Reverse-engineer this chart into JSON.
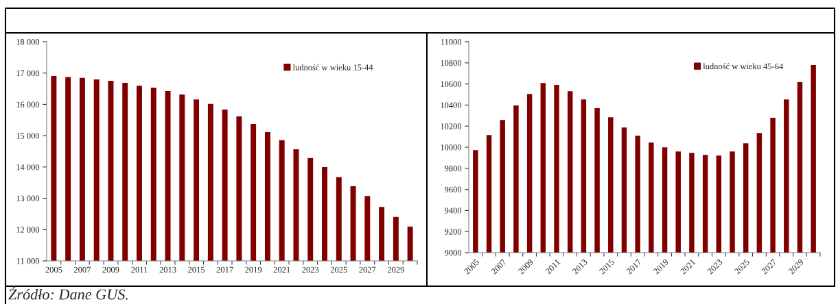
{
  "chart_data": [
    {
      "type": "bar",
      "categories": [
        "2005",
        null,
        "2007",
        null,
        "2009",
        null,
        "2011",
        null,
        "2013",
        null,
        "2015",
        null,
        "2017",
        null,
        "2019",
        null,
        "2021",
        null,
        "2023",
        null,
        "2025",
        null,
        "2027",
        null,
        "2029",
        null
      ],
      "series": [
        {
          "name": "ludność w wieku 15-44",
          "color": "#800000",
          "values": [
            16920,
            16890,
            16860,
            16810,
            16770,
            16700,
            16610,
            16550,
            16440,
            16330,
            16170,
            16030,
            15850,
            15630,
            15390,
            15130,
            14870,
            14580,
            14300,
            14010,
            13690,
            13400,
            13090,
            12740,
            12420,
            12110
          ]
        }
      ],
      "ylim": [
        11000,
        18000
      ],
      "yticks": [
        {
          "value": 11000,
          "label": "11 000"
        },
        {
          "value": 12000,
          "label": "12 000"
        },
        {
          "value": 13000,
          "label": "13 000"
        },
        {
          "value": 14000,
          "label": "14 000"
        },
        {
          "value": 15000,
          "label": "15 000"
        },
        {
          "value": 16000,
          "label": "16 000"
        },
        {
          "value": 17000,
          "label": "17 000"
        },
        {
          "value": 18000,
          "label": "18 000"
        }
      ],
      "legend": "top right",
      "grid": false,
      "annotations": [
        "Źródło: Dane GUS."
      ]
    },
    {
      "type": "bar",
      "categories": [
        "2005",
        null,
        "2007",
        null,
        "2009",
        null,
        "2011",
        null,
        "2013",
        null,
        "2015",
        null,
        "2017",
        null,
        "2019",
        null,
        "2021",
        null,
        "2023",
        null,
        "2025",
        null,
        "2027",
        null,
        "2029",
        null
      ],
      "series": [
        {
          "name": "ludność w wieku 45-64",
          "color": "#800000",
          "values": [
            9977,
            10120,
            10263,
            10400,
            10510,
            10614,
            10595,
            10536,
            10458,
            10374,
            10289,
            10192,
            10114,
            10049,
            10003,
            9964,
            9951,
            9932,
            9925,
            9964,
            10042,
            10140,
            10283,
            10458,
            10621,
            10783
          ]
        }
      ],
      "ylim": [
        9000,
        11000
      ],
      "yticks": [
        9000,
        9200,
        9400,
        9600,
        9800,
        10000,
        10200,
        10400,
        10600,
        10800,
        11000
      ],
      "legend": "top right",
      "grid": false
    }
  ]
}
